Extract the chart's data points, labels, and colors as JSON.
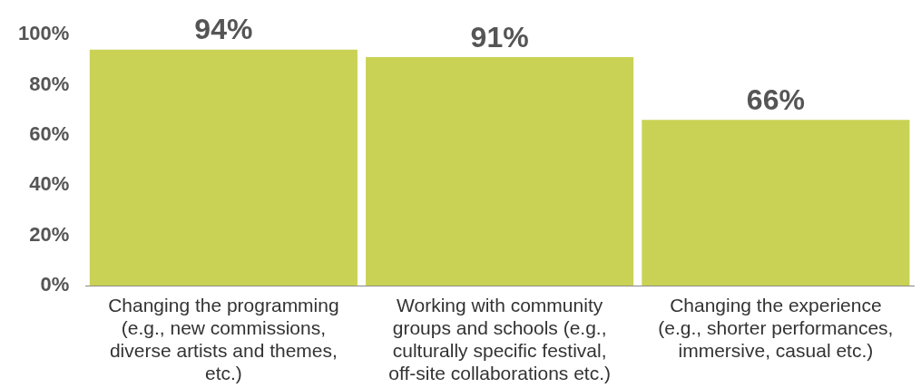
{
  "chart_data": {
    "type": "bar",
    "categories": [
      "Changing the programming (e.g., new commissions, diverse artists and themes, etc.)",
      "Working with community groups and schools (e.g., culturally specific festival, off-site collaborations etc.)",
      "Changing the experience (e.g., shorter performances, immersive, casual etc.)"
    ],
    "values": [
      94,
      91,
      66
    ],
    "color": "#c9d255",
    "ylim": [
      0,
      100
    ],
    "yticks": [
      {
        "value": 0,
        "label": "0%"
      },
      {
        "value": 20,
        "label": "20%"
      },
      {
        "value": 40,
        "label": "40%"
      },
      {
        "value": 60,
        "label": "60%"
      },
      {
        "value": 80,
        "label": "80%"
      },
      {
        "value": 100,
        "label": "100%"
      }
    ],
    "value_labels": [
      "94%",
      "91%",
      "66%"
    ],
    "grid": false,
    "legend": false
  }
}
